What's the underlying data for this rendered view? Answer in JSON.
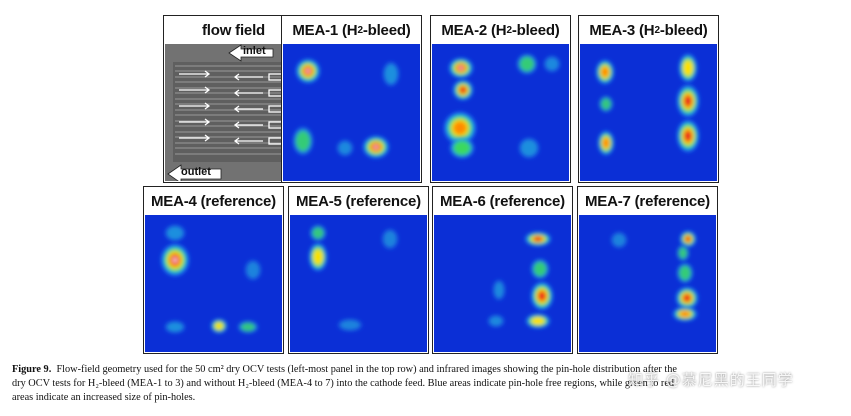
{
  "panels": [
    {
      "id": "flow-field",
      "title": "flow field",
      "kind": "schematic"
    },
    {
      "id": "mea-1",
      "title_pre": "MEA-1 (H",
      "title_sub": "2",
      "title_post": "-bleed)",
      "kind": "ir"
    },
    {
      "id": "mea-2",
      "title_pre": "MEA-2 (H",
      "title_sub": "2",
      "title_post": "-bleed)",
      "kind": "ir"
    },
    {
      "id": "mea-3",
      "title_pre": "MEA-3 (H",
      "title_sub": "2",
      "title_post": "-bleed)",
      "kind": "ir"
    },
    {
      "id": "mea-4",
      "title": "MEA-4 (reference)",
      "kind": "ir"
    },
    {
      "id": "mea-5",
      "title": "MEA-5 (reference)",
      "kind": "ir"
    },
    {
      "id": "mea-6",
      "title": "MEA-6 (reference)",
      "kind": "ir"
    },
    {
      "id": "mea-7",
      "title": "MEA-7 (reference)",
      "kind": "ir"
    }
  ],
  "flow_field": {
    "inlet_label": "inlet",
    "outlet_label": "outlet"
  },
  "colors": {
    "cold": "#0b2fd6",
    "warm_green": "#3fe04a",
    "hot_yellow": "#ffe000",
    "hottest_red": "#e8141a",
    "core_white": "#fff0f0"
  },
  "caption": {
    "label": "Figure 9.",
    "line1": "Flow-field geometry used for the 50 cm² dry OCV tests (left-most panel in the top row) and infrared images showing the pin-hole distribution after the",
    "line2": "dry OCV tests for H₂-bleed (MEA-1 to 3) and without H₂-bleed (MEA-4 to 7) into the cathode feed. Blue areas indicate pin-hole free regions, while green to red",
    "line3": "areas indicate an increased size of pin-holes."
  },
  "watermark": "知乎 @慕尼黑的王同学"
}
